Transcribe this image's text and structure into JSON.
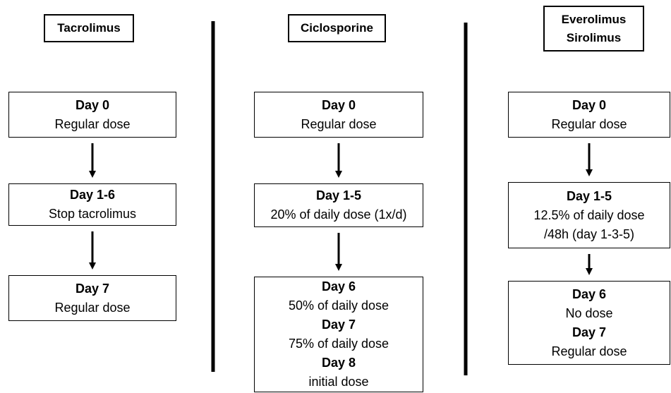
{
  "columns": [
    {
      "header": [
        "Tacrolimus"
      ],
      "steps": [
        [
          {
            "day": "Day 0",
            "text": [
              "Regular dose"
            ]
          }
        ],
        [
          {
            "day": "Day 1-6",
            "text": [
              "Stop tacrolimus"
            ]
          }
        ],
        [
          {
            "day": "Day 7",
            "text": [
              "Regular dose"
            ]
          }
        ]
      ]
    },
    {
      "header": [
        "Ciclosporine"
      ],
      "steps": [
        [
          {
            "day": "Day 0",
            "text": [
              "Regular dose"
            ]
          }
        ],
        [
          {
            "day": "Day 1-5",
            "text": [
              "20% of daily dose (1x/d)"
            ]
          }
        ],
        [
          {
            "day": "Day 6",
            "text": [
              "50% of daily dose"
            ]
          },
          {
            "day": "Day 7",
            "text": [
              "75% of daily dose"
            ]
          },
          {
            "day": "Day 8",
            "text": [
              "initial dose"
            ]
          }
        ]
      ]
    },
    {
      "header": [
        "Everolimus",
        "Sirolimus"
      ],
      "steps": [
        [
          {
            "day": "Day 0",
            "text": [
              "Regular dose"
            ]
          }
        ],
        [
          {
            "day": "Day 1-5",
            "text": [
              "12.5% of daily dose",
              "/48h (day 1-3-5)"
            ]
          }
        ],
        [
          {
            "day": "Day 6",
            "text": [
              "No dose"
            ]
          },
          {
            "day": "Day 7",
            "text": [
              "Regular dose"
            ]
          }
        ]
      ]
    }
  ]
}
